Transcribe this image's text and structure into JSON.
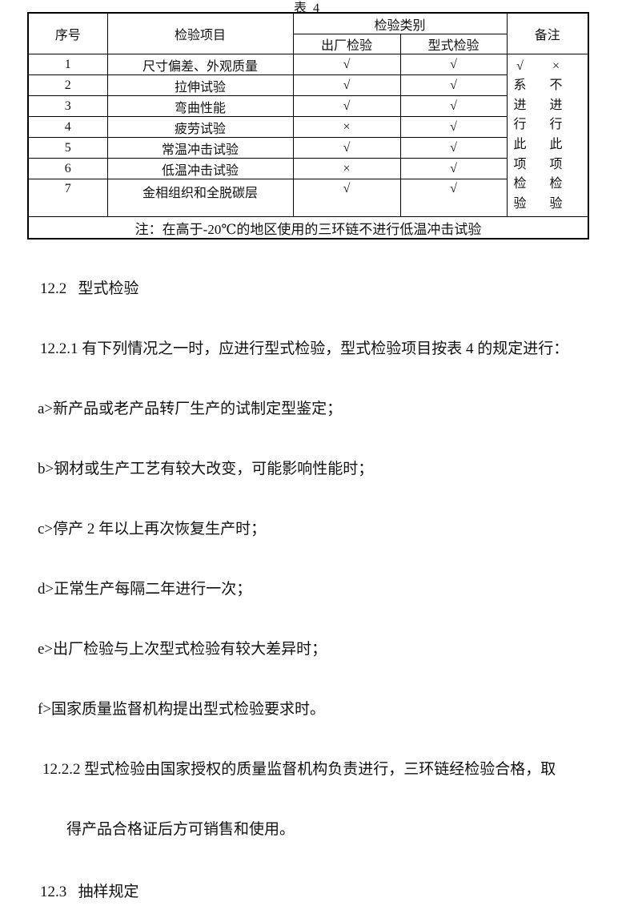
{
  "page": {
    "table_title": "表 4"
  },
  "table": {
    "header": {
      "serial": "序号",
      "item": "检验项目",
      "category": "检验类别",
      "factory": "出厂检验",
      "type": "型式检验",
      "remark": "备注"
    },
    "rows": [
      {
        "no": "1",
        "item": "尺寸偏差、外观质量",
        "factory": "√",
        "type": "√"
      },
      {
        "no": "2",
        "item": "拉伸试验",
        "factory": "√",
        "type": "√"
      },
      {
        "no": "3",
        "item": "弯曲性能",
        "factory": "√",
        "type": "√"
      },
      {
        "no": "4",
        "item": "疲劳试验",
        "factory": "×",
        "type": "√"
      },
      {
        "no": "5",
        "item": "常温冲击试验",
        "factory": "√",
        "type": "√"
      },
      {
        "no": "6",
        "item": "低温冲击试验",
        "factory": "×",
        "type": "√"
      },
      {
        "no": "7",
        "item": "金相组织和全脱碳层",
        "factory": "√",
        "type": "√"
      }
    ],
    "remark_check": "√系进行此项检验",
    "remark_cross": "×不进行此项检验",
    "note": "注：在高于-20℃的地区使用的三环链不进行低温冲击试验"
  },
  "body": {
    "lines": [
      "12.2   型式检验",
      "12.2.1 有下列情况之一时，应进行型式检验，型式检验项目按表 4 的规定进行：",
      "a>新产品或老产品转厂生产的试制定型鉴定；",
      "b>钢材或生产工艺有较大改变，可能影响性能时；",
      "c>停产 2 年以上再次恢复生产时；",
      "d>正常生产每隔二年进行一次；",
      "e>出厂检验与上次型式检验有较大差异时；",
      "f>国家质量监督机构提出型式检验要求时。",
      "12.2.2 型式检验由国家授权的质量监督机构负责进行，三环链经检验合格，取",
      "得产品合格证后方可销售和使用。",
      "12.3   抽样规定"
    ]
  }
}
